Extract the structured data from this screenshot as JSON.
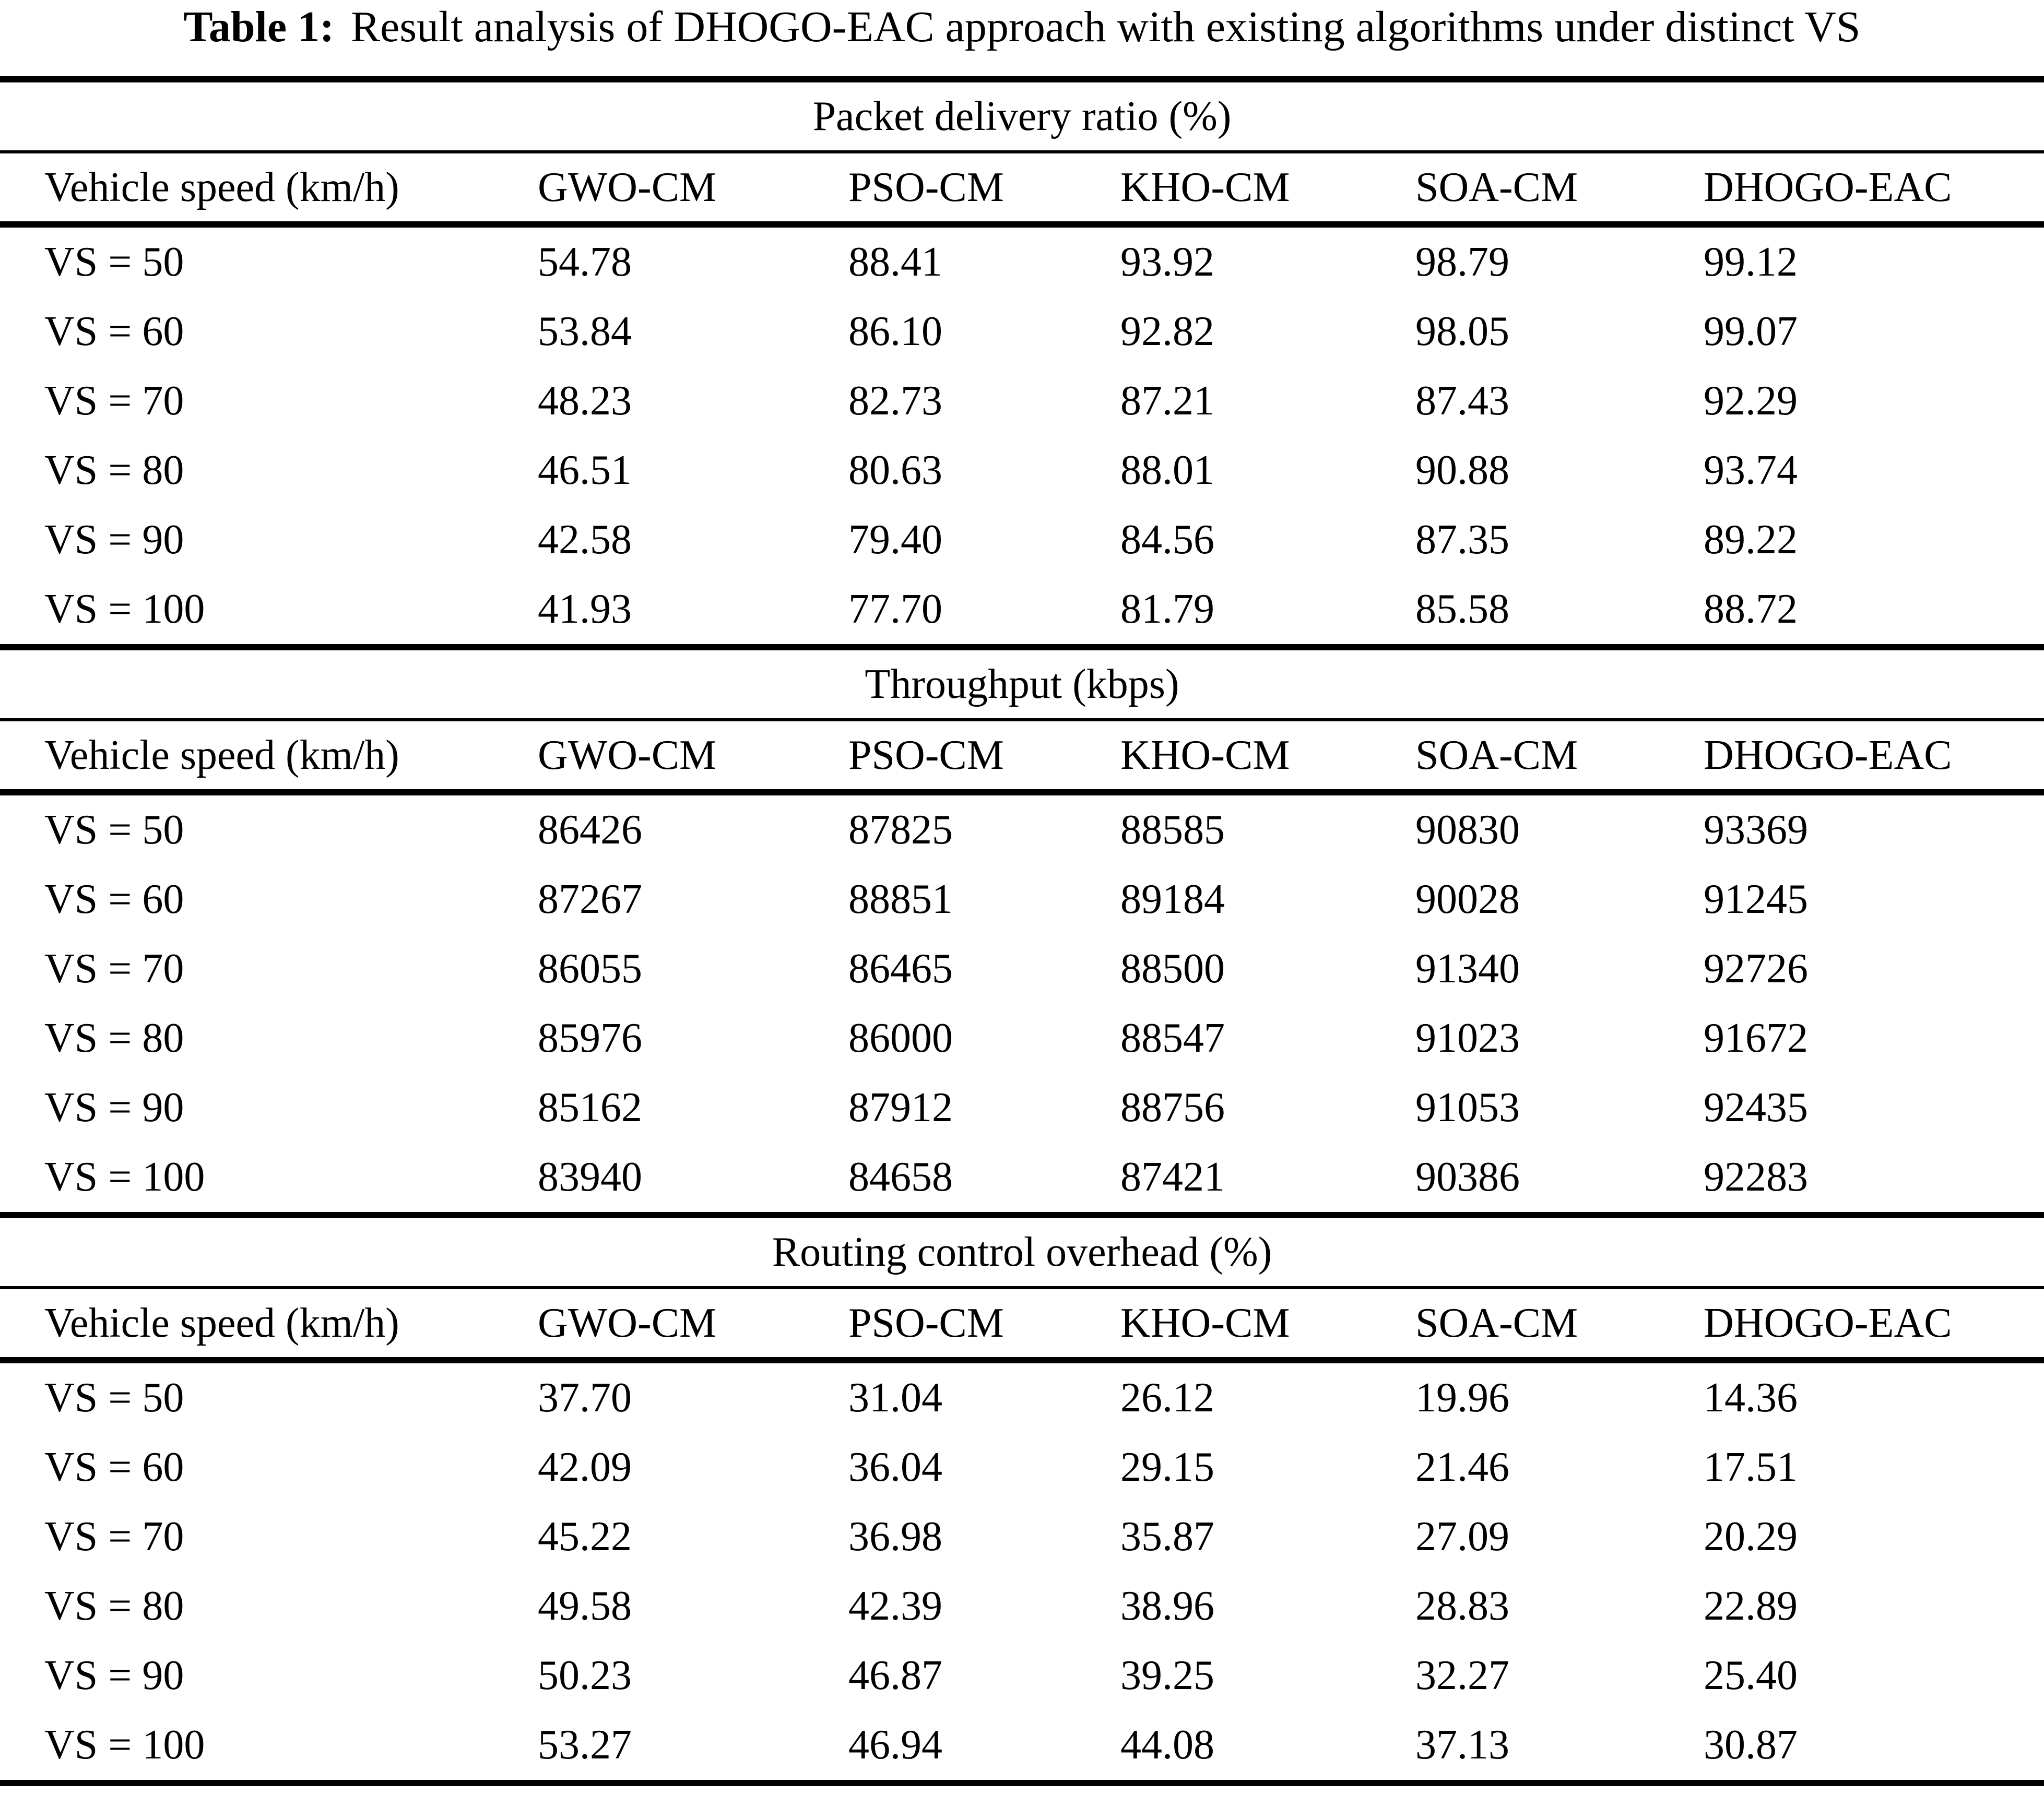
{
  "title": {
    "label": "Table 1:",
    "text": "Result analysis of DHOGO-EAC approach with existing algorithms under distinct VS"
  },
  "table": {
    "columns": [
      "Vehicle speed (km/h)",
      "GWO-CM",
      "PSO-CM",
      "KHO-CM",
      "SOA-CM",
      "DHOGO-EAC"
    ],
    "sections": [
      {
        "title": "Packet delivery ratio (%)",
        "rows": [
          {
            "label": "VS = 50",
            "values": [
              "54.78",
              "88.41",
              "93.92",
              "98.79",
              "99.12"
            ]
          },
          {
            "label": "VS = 60",
            "values": [
              "53.84",
              "86.10",
              "92.82",
              "98.05",
              "99.07"
            ]
          },
          {
            "label": "VS = 70",
            "values": [
              "48.23",
              "82.73",
              "87.21",
              "87.43",
              "92.29"
            ]
          },
          {
            "label": "VS = 80",
            "values": [
              "46.51",
              "80.63",
              "88.01",
              "90.88",
              "93.74"
            ]
          },
          {
            "label": "VS = 90",
            "values": [
              "42.58",
              "79.40",
              "84.56",
              "87.35",
              "89.22"
            ]
          },
          {
            "label": "VS = 100",
            "values": [
              "41.93",
              "77.70",
              "81.79",
              "85.58",
              "88.72"
            ]
          }
        ]
      },
      {
        "title": "Throughput (kbps)",
        "rows": [
          {
            "label": "VS = 50",
            "values": [
              "86426",
              "87825",
              "88585",
              "90830",
              "93369"
            ]
          },
          {
            "label": "VS = 60",
            "values": [
              "87267",
              "88851",
              "89184",
              "90028",
              "91245"
            ]
          },
          {
            "label": "VS = 70",
            "values": [
              "86055",
              "86465",
              "88500",
              "91340",
              "92726"
            ]
          },
          {
            "label": "VS = 80",
            "values": [
              "85976",
              "86000",
              "88547",
              "91023",
              "91672"
            ]
          },
          {
            "label": "VS = 90",
            "values": [
              "85162",
              "87912",
              "88756",
              "91053",
              "92435"
            ]
          },
          {
            "label": "VS = 100",
            "values": [
              "83940",
              "84658",
              "87421",
              "90386",
              "92283"
            ]
          }
        ]
      },
      {
        "title": "Routing control overhead (%)",
        "rows": [
          {
            "label": "VS = 50",
            "values": [
              "37.70",
              "31.04",
              "26.12",
              "19.96",
              "14.36"
            ]
          },
          {
            "label": "VS = 60",
            "values": [
              "42.09",
              "36.04",
              "29.15",
              "21.46",
              "17.51"
            ]
          },
          {
            "label": "VS = 70",
            "values": [
              "45.22",
              "36.98",
              "35.87",
              "27.09",
              "20.29"
            ]
          },
          {
            "label": "VS = 80",
            "values": [
              "49.58",
              "42.39",
              "38.96",
              "28.83",
              "22.89"
            ]
          },
          {
            "label": "VS = 90",
            "values": [
              "50.23",
              "46.87",
              "39.25",
              "32.27",
              "25.40"
            ]
          },
          {
            "label": "VS = 100",
            "values": [
              "53.27",
              "46.94",
              "44.08",
              "37.13",
              "30.87"
            ]
          }
        ]
      }
    ]
  },
  "colors": {
    "text": "#000000",
    "background": "#ffffff",
    "rule": "#000000"
  }
}
